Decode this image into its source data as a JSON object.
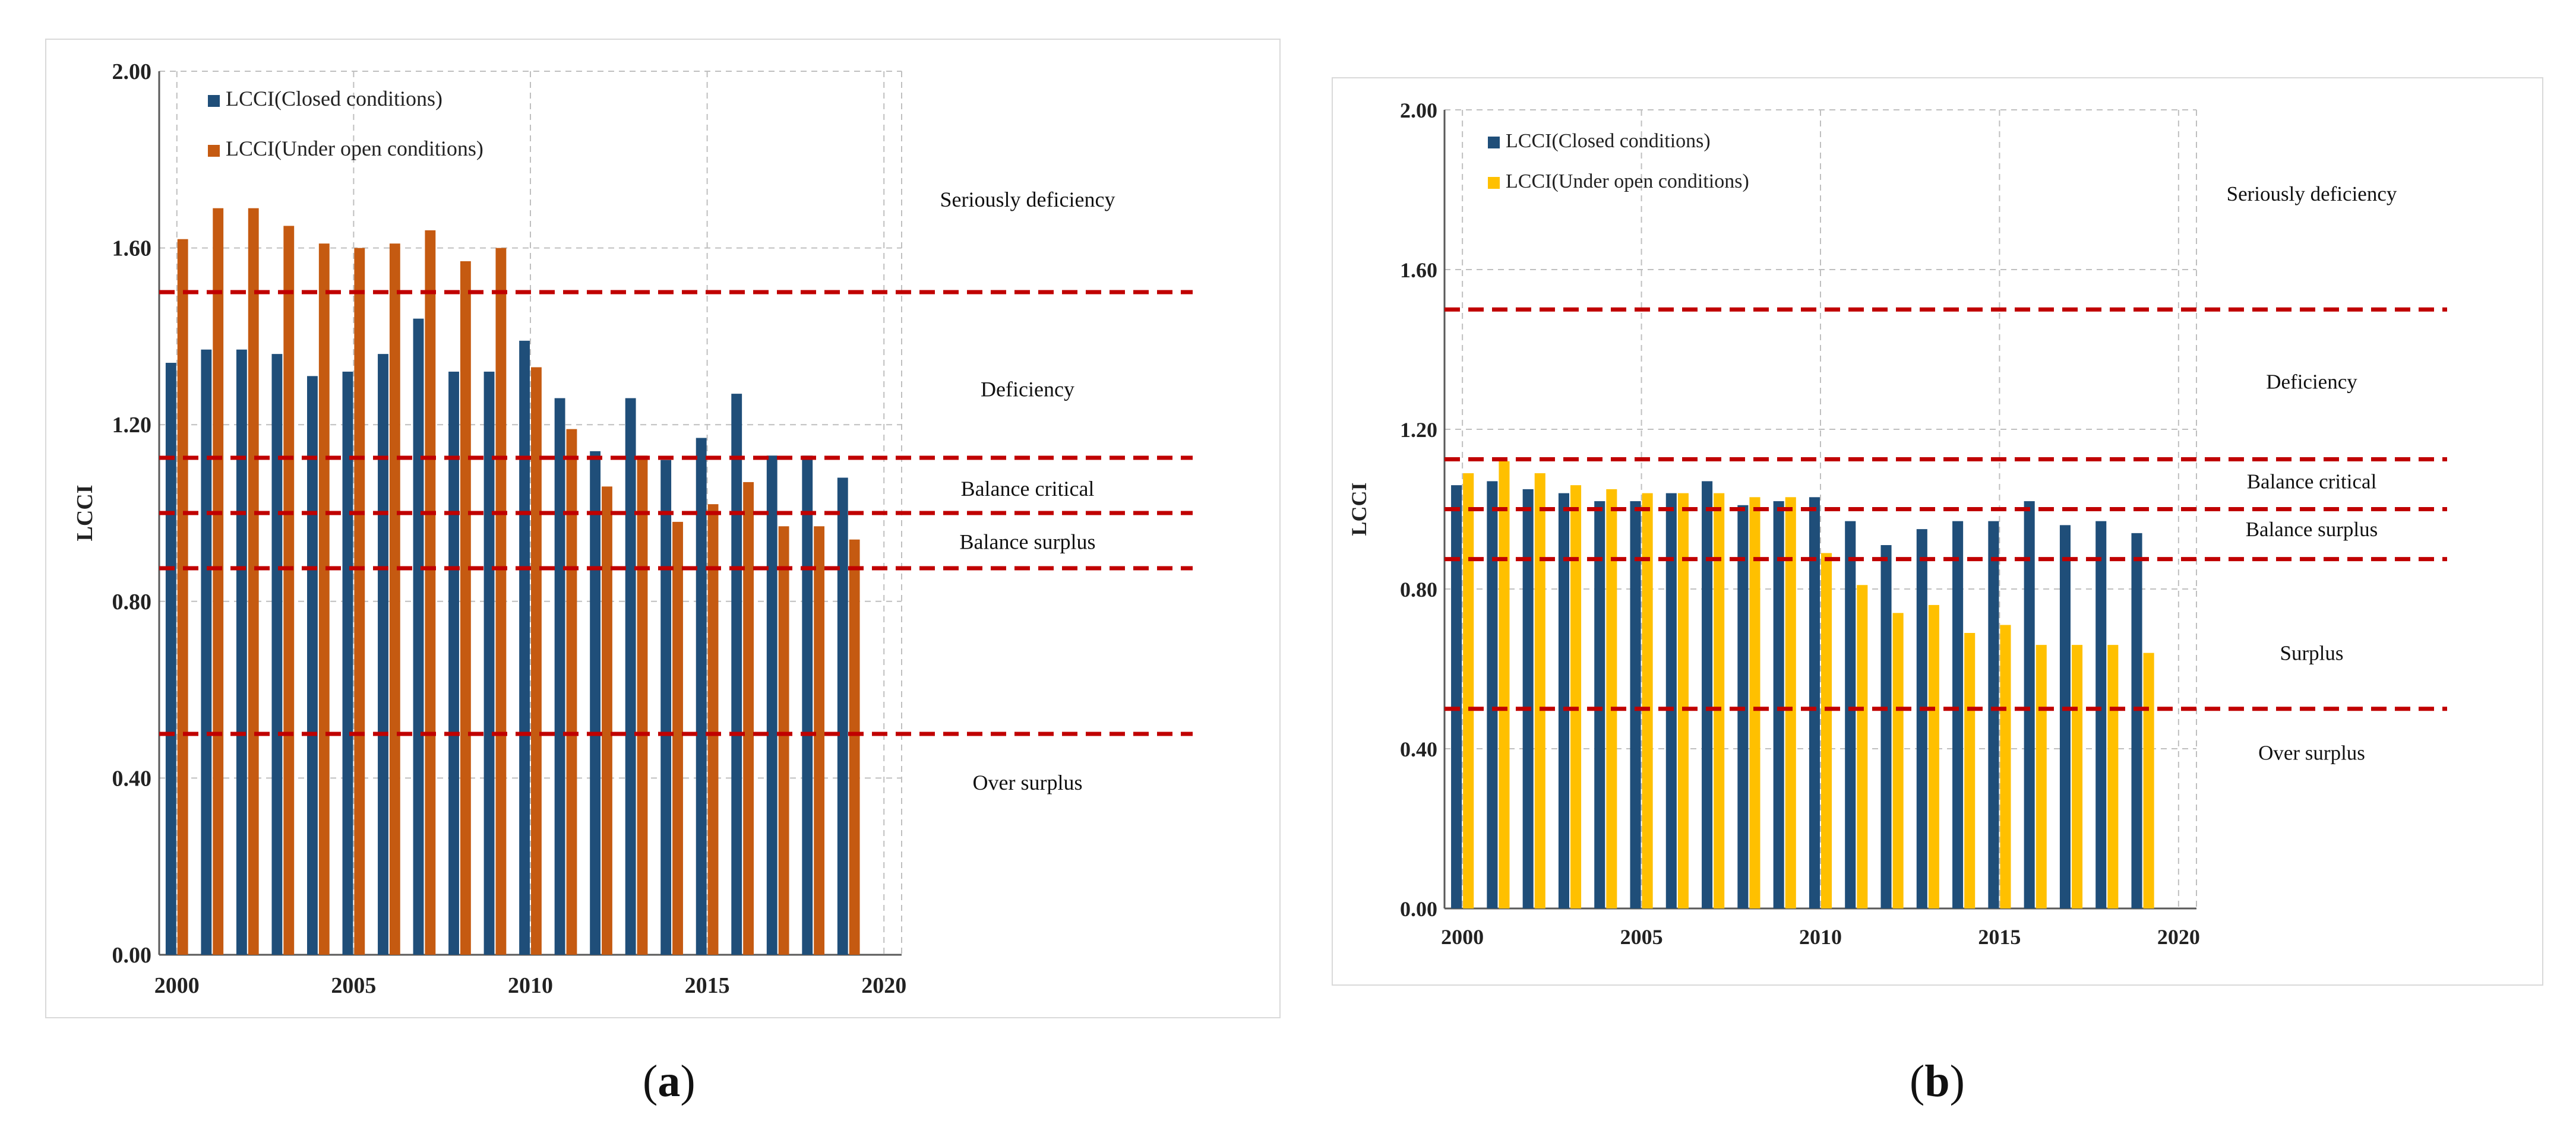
{
  "captions": {
    "a": {
      "open": "(",
      "letter": "a",
      "close": ")"
    },
    "b": {
      "open": "(",
      "letter": "b",
      "close": ")"
    }
  },
  "colors": {
    "closed": "#1f4e79",
    "open_a": "#c55a11",
    "open_b": "#ffc000",
    "threshold": "#c00000",
    "grid": "#bfbfbf"
  },
  "chart_data": [
    {
      "id": "a",
      "type": "bar",
      "ylabel": "LCCI",
      "ylim": [
        0,
        2
      ],
      "yticks": [
        "0.00",
        "0.40",
        "0.80",
        "1.20",
        "1.60",
        "2.00"
      ],
      "xlim": [
        1999.5,
        2020.5
      ],
      "xticks": [
        "2000",
        "2005",
        "2010",
        "2015",
        "2020"
      ],
      "grid": true,
      "legend": "top-left",
      "x": [
        2000,
        2001,
        2002,
        2003,
        2004,
        2005,
        2006,
        2007,
        2008,
        2009,
        2010,
        2011,
        2012,
        2013,
        2014,
        2015,
        2016,
        2017,
        2018,
        2019
      ],
      "series": [
        {
          "name": "LCCI(Closed conditions)",
          "color": "#1f4e79",
          "values": [
            1.34,
            1.37,
            1.37,
            1.36,
            1.31,
            1.32,
            1.36,
            1.44,
            1.32,
            1.32,
            1.39,
            1.26,
            1.14,
            1.26,
            1.12,
            1.17,
            1.27,
            1.13,
            1.13,
            1.08
          ]
        },
        {
          "name": "LCCI(Under open  conditions)",
          "color": "#c55a11",
          "values": [
            1.62,
            1.69,
            1.69,
            1.65,
            1.61,
            1.6,
            1.61,
            1.64,
            1.57,
            1.6,
            1.33,
            1.19,
            1.06,
            1.13,
            0.98,
            1.02,
            1.07,
            0.97,
            0.97,
            0.94
          ]
        }
      ],
      "thresholds": [
        1.5,
        1.125,
        1.0,
        0.875,
        0.5
      ],
      "zones": [
        {
          "label": "Seriously deficiency",
          "y": 1.71
        },
        {
          "label": "Deficiency",
          "y": 1.28
        },
        {
          "label": "Balance critical",
          "y": 1.055
        },
        {
          "label": "Balance surplus",
          "y": 0.935
        },
        {
          "label": "Over surplus",
          "y": 0.39
        }
      ]
    },
    {
      "id": "b",
      "type": "bar",
      "ylabel": "LCCI",
      "ylim": [
        0,
        2
      ],
      "yticks": [
        "0.00",
        "0.40",
        "0.80",
        "1.20",
        "1.60",
        "2.00"
      ],
      "xlim": [
        1999.5,
        2020.5
      ],
      "xticks": [
        "2000",
        "2005",
        "2010",
        "2015",
        "2020"
      ],
      "grid": true,
      "legend": "top-left",
      "x": [
        2000,
        2001,
        2002,
        2003,
        2004,
        2005,
        2006,
        2007,
        2008,
        2009,
        2010,
        2011,
        2012,
        2013,
        2014,
        2015,
        2016,
        2017,
        2018,
        2019
      ],
      "series": [
        {
          "name": "LCCI(Closed conditions)",
          "color": "#1f4e79",
          "values": [
            1.06,
            1.07,
            1.05,
            1.04,
            1.02,
            1.02,
            1.04,
            1.07,
            1.01,
            1.02,
            1.03,
            0.97,
            0.91,
            0.95,
            0.97,
            0.97,
            1.02,
            0.96,
            0.97,
            0.94
          ]
        },
        {
          "name": "LCCI(Under open  conditions)",
          "color": "#ffc000",
          "values": [
            1.09,
            1.12,
            1.09,
            1.06,
            1.05,
            1.04,
            1.04,
            1.04,
            1.03,
            1.03,
            0.89,
            0.81,
            0.74,
            0.76,
            0.69,
            0.71,
            0.66,
            0.66,
            0.66,
            0.64
          ]
        }
      ],
      "thresholds": [
        1.5,
        1.125,
        1.0,
        0.875,
        0.5
      ],
      "zones": [
        {
          "label": "Seriously deficiency",
          "y": 1.79
        },
        {
          "label": "Deficiency",
          "y": 1.32
        },
        {
          "label": "Balance critical",
          "y": 1.07
        },
        {
          "label": "Balance surplus",
          "y": 0.95
        },
        {
          "label": "Surplus",
          "y": 0.64
        },
        {
          "label": "Over surplus",
          "y": 0.39
        }
      ]
    }
  ]
}
